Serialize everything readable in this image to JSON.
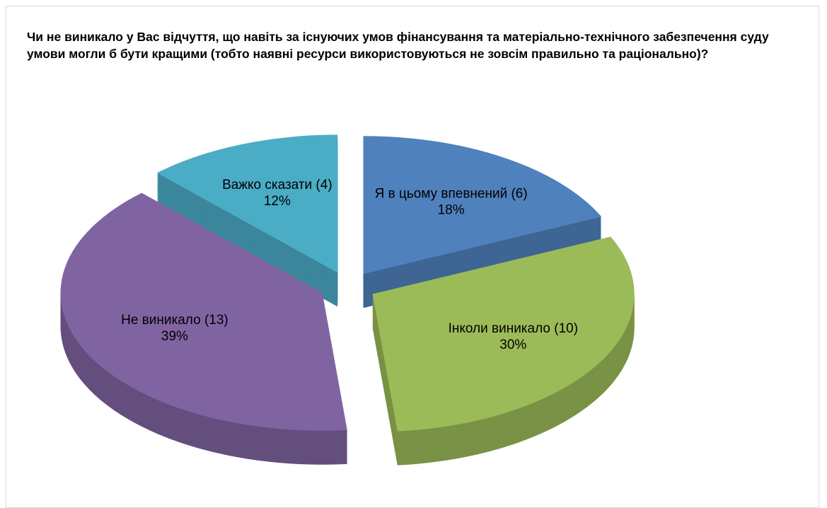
{
  "chart_data": {
    "type": "pie",
    "title": "Чи не виникало у Вас відчуття, що навіть за існуючих умов фінансування та матеріально-технічного забезпечення суду умови могли б бути кращими (тобто наявні ресурси використовуються не зовсім правильно та раціонально)?",
    "categories": [
      "Я в цьому впевнений (6)",
      "Інколи виникало (10)",
      "Не виникало (13)",
      "Важко сказати (4)"
    ],
    "values": [
      18,
      30,
      39,
      12
    ],
    "value_labels": [
      "18%",
      "30%",
      "39%",
      "12%"
    ],
    "colors": [
      "#4f81bd",
      "#9bbb59",
      "#8064a2",
      "#4bacc6"
    ],
    "exploded": true,
    "three_d": true
  }
}
